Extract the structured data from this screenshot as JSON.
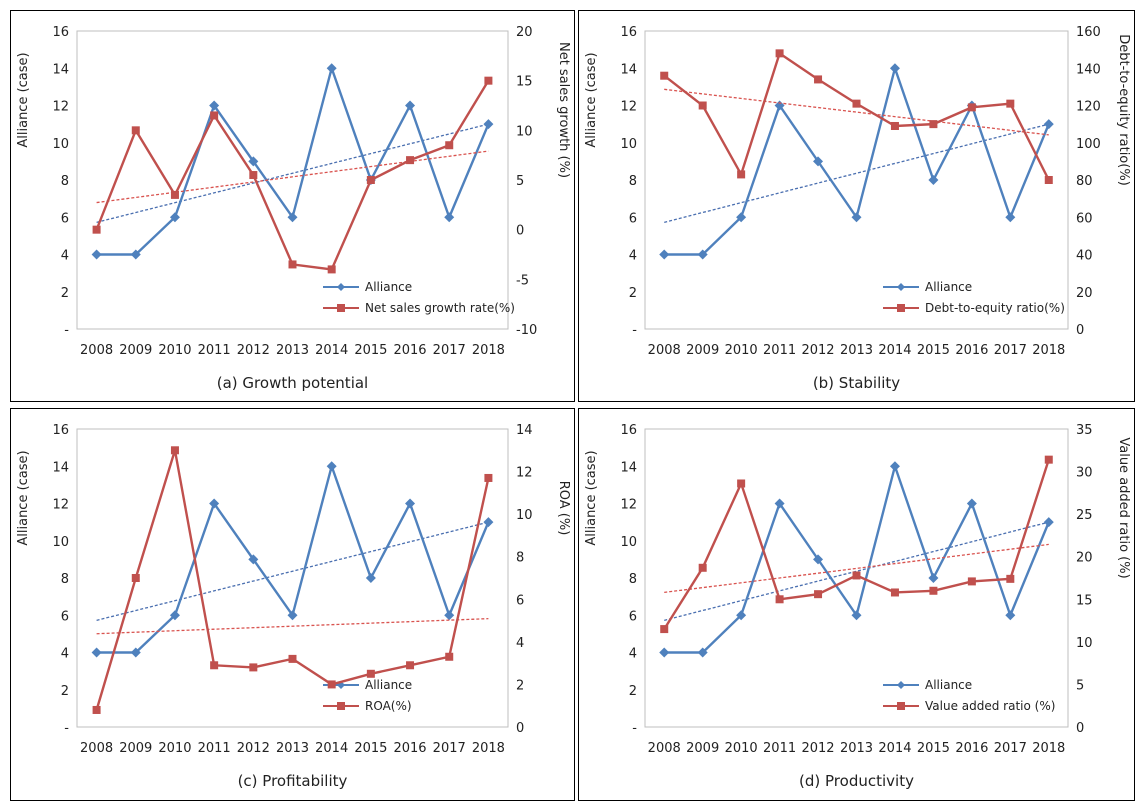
{
  "colors": {
    "alliance": "#4f81bd",
    "secondary": "#c0504d",
    "trend_alliance": "#4a6fb0",
    "trend_secondary": "#d9534f"
  },
  "chart_data": [
    {
      "id": "a",
      "type": "line",
      "caption": "(a) Growth potential",
      "categories": [
        "2008",
        "2009",
        "2010",
        "2011",
        "2012",
        "2013",
        "2014",
        "2015",
        "2016",
        "2017",
        "2018"
      ],
      "left_axis": {
        "label": "Alliance (case)",
        "ticks": [
          "-",
          "2",
          "4",
          "6",
          "8",
          "10",
          "12",
          "14",
          "16"
        ],
        "min": 0,
        "max": 16
      },
      "right_axis": {
        "label": "Net sales growth (%)",
        "ticks": [
          "-10",
          "-5",
          "0",
          "5",
          "10",
          "15",
          "20"
        ],
        "min": -10,
        "max": 20
      },
      "series": [
        {
          "name": "Alliance",
          "axis": "left",
          "marker": "diamond",
          "values": [
            4,
            4,
            6,
            12,
            9,
            6,
            14,
            8,
            12,
            6,
            11
          ]
        },
        {
          "name": "Net sales growth rate(%)",
          "axis": "right",
          "marker": "square",
          "values": [
            0,
            10,
            3.5,
            11.5,
            5.5,
            -3.5,
            -4,
            5,
            7,
            8.5,
            15
          ]
        }
      ],
      "trendlines": true,
      "legend_position": "bottom-right"
    },
    {
      "id": "b",
      "type": "line",
      "caption": "(b) Stability",
      "categories": [
        "2008",
        "2009",
        "2010",
        "2011",
        "2012",
        "2013",
        "2014",
        "2015",
        "2016",
        "2017",
        "2018"
      ],
      "left_axis": {
        "label": "Alliance (case)",
        "ticks": [
          "-",
          "2",
          "4",
          "6",
          "8",
          "10",
          "12",
          "14",
          "16"
        ],
        "min": 0,
        "max": 16
      },
      "right_axis": {
        "label": "Debt-to-equity ratio(%)",
        "ticks": [
          "0",
          "20",
          "40",
          "60",
          "80",
          "100",
          "120",
          "140",
          "160"
        ],
        "min": 0,
        "max": 160
      },
      "series": [
        {
          "name": "Alliance",
          "axis": "left",
          "marker": "diamond",
          "values": [
            4,
            4,
            6,
            12,
            9,
            6,
            14,
            8,
            12,
            6,
            11
          ]
        },
        {
          "name": "Debt-to-equity ratio(%)",
          "axis": "right",
          "marker": "square",
          "values": [
            136,
            120,
            83,
            148,
            134,
            121,
            109,
            110,
            119,
            121,
            80
          ]
        }
      ],
      "trendlines": true,
      "legend_position": "bottom-right"
    },
    {
      "id": "c",
      "type": "line",
      "caption": "(c) Profitability",
      "categories": [
        "2008",
        "2009",
        "2010",
        "2011",
        "2012",
        "2013",
        "2014",
        "2015",
        "2016",
        "2017",
        "2018"
      ],
      "left_axis": {
        "label": "Alliance (case)",
        "ticks": [
          "-",
          "2",
          "4",
          "6",
          "8",
          "10",
          "12",
          "14",
          "16"
        ],
        "min": 0,
        "max": 16
      },
      "right_axis": {
        "label": "ROA (%)",
        "ticks": [
          "0",
          "2",
          "4",
          "6",
          "8",
          "10",
          "12",
          "14"
        ],
        "min": 0,
        "max": 14
      },
      "series": [
        {
          "name": "Alliance",
          "axis": "left",
          "marker": "diamond",
          "values": [
            4,
            4,
            6,
            12,
            9,
            6,
            14,
            8,
            12,
            6,
            11
          ]
        },
        {
          "name": "ROA(%)",
          "axis": "right",
          "marker": "square",
          "values": [
            0.8,
            7,
            13,
            2.9,
            2.8,
            3.2,
            2,
            2.5,
            2.9,
            3.3,
            11.7
          ]
        }
      ],
      "trendlines": true,
      "legend_position": "bottom-right"
    },
    {
      "id": "d",
      "type": "line",
      "caption": "(d) Productivity",
      "categories": [
        "2008",
        "2009",
        "2010",
        "2011",
        "2012",
        "2013",
        "2014",
        "2015",
        "2016",
        "2017",
        "2018"
      ],
      "left_axis": {
        "label": "Alliance (case)",
        "ticks": [
          "-",
          "2",
          "4",
          "6",
          "8",
          "10",
          "12",
          "14",
          "16"
        ],
        "min": 0,
        "max": 16
      },
      "right_axis": {
        "label": "Value added ratio (%)",
        "ticks": [
          "0",
          "5",
          "10",
          "15",
          "20",
          "25",
          "30",
          "35"
        ],
        "min": 0,
        "max": 35
      },
      "series": [
        {
          "name": "Alliance",
          "axis": "left",
          "marker": "diamond",
          "values": [
            4,
            4,
            6,
            12,
            9,
            6,
            14,
            8,
            12,
            6,
            11
          ]
        },
        {
          "name": "Value added ratio (%)",
          "axis": "right",
          "marker": "square",
          "values": [
            11.5,
            18.7,
            28.6,
            15,
            15.6,
            17.8,
            15.8,
            16,
            17.1,
            17.4,
            31.4
          ]
        }
      ],
      "trendlines": true,
      "legend_position": "bottom-right"
    }
  ]
}
